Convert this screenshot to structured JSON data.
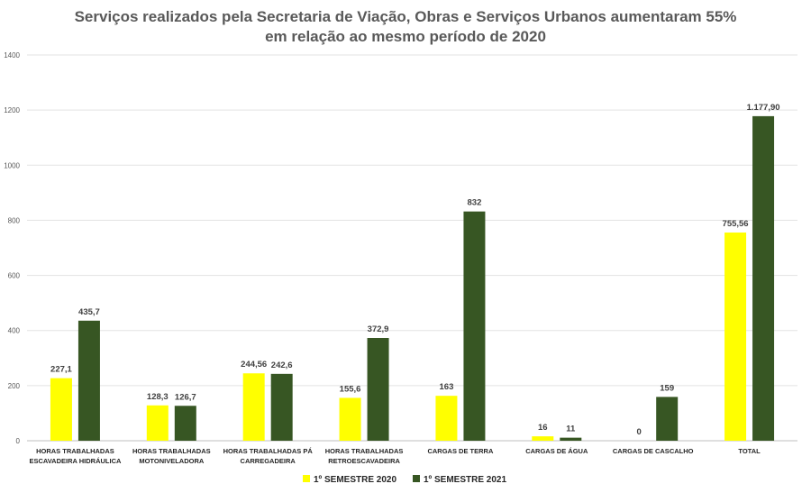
{
  "chart_data": {
    "type": "bar",
    "title_lines": [
      "Serviços realizados pela Secretaria de Viação, Obras e Serviços Urbanos aumentaram 55%",
      "em relação ao mesmo período de 2020"
    ],
    "categories": [
      [
        "HORAS TRABALHADAS",
        "ESCAVADEIRA HIDRÁULICA"
      ],
      [
        "HORAS TRABALHADAS",
        "MOTONIVELADORA"
      ],
      [
        "HORAS TRABALHADAS PÁ",
        "CARREGADEIRA"
      ],
      [
        "HORAS TRABALHADAS",
        "RETROESCAVADEIRA"
      ],
      [
        "CARGAS DE TERRA"
      ],
      [
        "CARGAS DE ÁGUA"
      ],
      [
        "CARGAS DE CASCALHO"
      ],
      [
        "TOTAL"
      ]
    ],
    "series": [
      {
        "name": "1º SEMESTRE 2020",
        "color": "#ffff00",
        "values": [
          227.1,
          128.3,
          244.56,
          155.6,
          163,
          16,
          0,
          755.56
        ],
        "labels": [
          "227,1",
          "128,3",
          "244,56",
          "155,6",
          "163",
          "16",
          "0",
          "755,56"
        ]
      },
      {
        "name": "1º SEMESTRE 2021",
        "color": "#375623",
        "values": [
          435.7,
          126.7,
          242.6,
          372.9,
          832,
          11,
          159,
          1177.9
        ],
        "labels": [
          "435,7",
          "126,7",
          "242,6",
          "372,9",
          "832",
          "11",
          "159",
          "1.177,90"
        ]
      }
    ],
    "ylim": [
      0,
      1400
    ],
    "yticks": [
      0,
      200,
      400,
      600,
      800,
      1000,
      1200,
      1400
    ],
    "grid": true,
    "legend_position": "bottom"
  }
}
